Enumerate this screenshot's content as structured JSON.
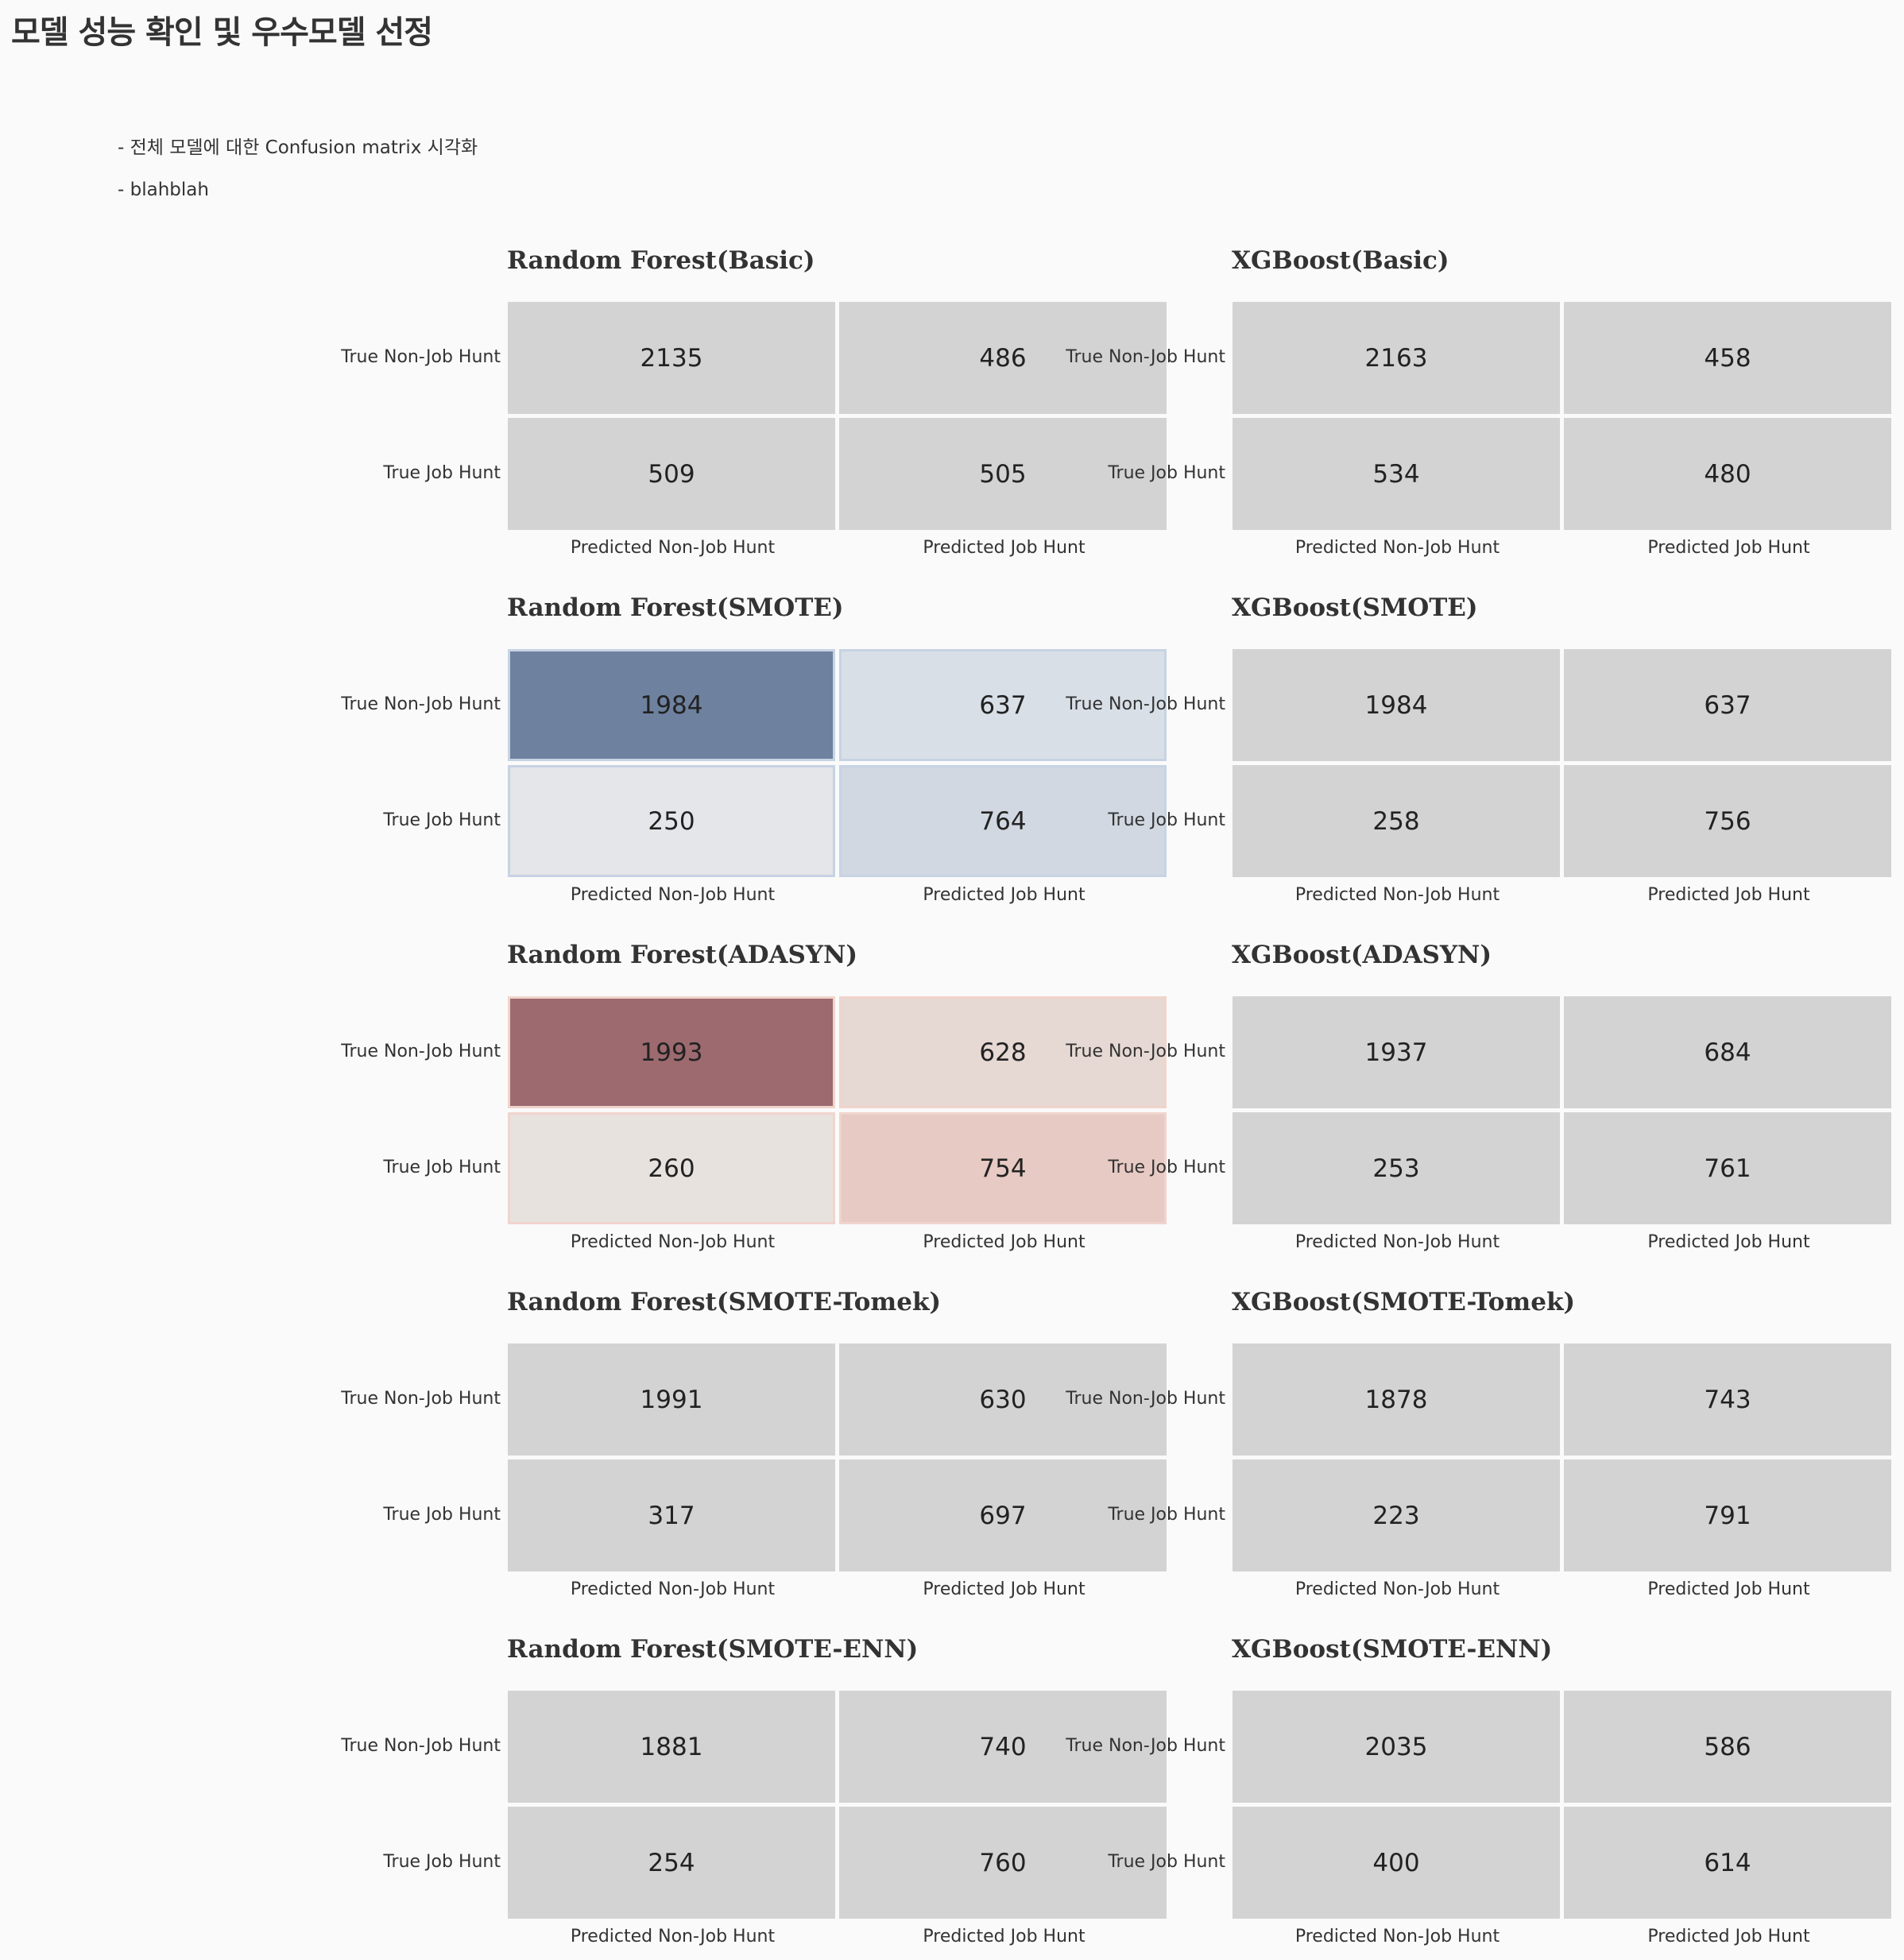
{
  "header": {
    "title": "모델 성능 확인 및 우수모델 선정",
    "notes": [
      "- 전체 모델에 대한 Confusion matrix 시각화",
      "- blahblah"
    ]
  },
  "labels": {
    "rows": [
      "True Non-Job Hunt",
      "True Job Hunt"
    ],
    "cols": [
      "Predicted Non-Job Hunt",
      "Predicted Job Hunt"
    ]
  },
  "colors": {
    "neutral": "#d3d3d3",
    "blue": [
      "#6e819f",
      "#d8dfe7",
      "#e4e6e9",
      "#d1d8e1"
    ],
    "red": [
      "#9d6a6f",
      "#e6d8d3",
      "#e8e2df",
      "#e6cac3"
    ]
  },
  "chart_data": [
    {
      "type": "heatmap",
      "title": "Random Forest(Basic)",
      "values": [
        [
          2135,
          486
        ],
        [
          509,
          505
        ]
      ],
      "palette": "neutral"
    },
    {
      "type": "heatmap",
      "title": "XGBoost(Basic)",
      "values": [
        [
          2163,
          458
        ],
        [
          534,
          480
        ]
      ],
      "palette": "neutral"
    },
    {
      "type": "heatmap",
      "title": "Random Forest(SMOTE)",
      "values": [
        [
          1984,
          637
        ],
        [
          250,
          764
        ]
      ],
      "palette": "blue"
    },
    {
      "type": "heatmap",
      "title": "XGBoost(SMOTE)",
      "values": [
        [
          1984,
          637
        ],
        [
          258,
          756
        ]
      ],
      "palette": "neutral"
    },
    {
      "type": "heatmap",
      "title": "Random Forest(ADASYN)",
      "values": [
        [
          1993,
          628
        ],
        [
          260,
          754
        ]
      ],
      "palette": "red"
    },
    {
      "type": "heatmap",
      "title": "XGBoost(ADASYN)",
      "values": [
        [
          1937,
          684
        ],
        [
          253,
          761
        ]
      ],
      "palette": "neutral"
    },
    {
      "type": "heatmap",
      "title": "Random Forest(SMOTE-Tomek)",
      "values": [
        [
          1991,
          630
        ],
        [
          317,
          697
        ]
      ],
      "palette": "neutral"
    },
    {
      "type": "heatmap",
      "title": "XGBoost(SMOTE-Tomek)",
      "values": [
        [
          1878,
          743
        ],
        [
          223,
          791
        ]
      ],
      "palette": "neutral"
    },
    {
      "type": "heatmap",
      "title": "Random Forest(SMOTE-ENN)",
      "values": [
        [
          1881,
          740
        ],
        [
          254,
          760
        ]
      ],
      "palette": "neutral"
    },
    {
      "type": "heatmap",
      "title": "XGBoost(SMOTE-ENN)",
      "values": [
        [
          2035,
          586
        ],
        [
          400,
          614
        ]
      ],
      "palette": "neutral"
    }
  ]
}
